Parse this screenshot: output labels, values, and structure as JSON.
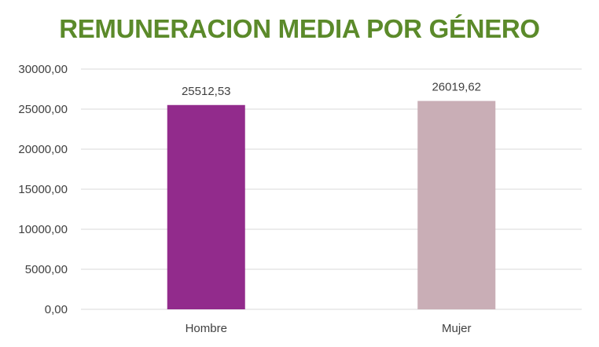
{
  "chart_data": {
    "type": "bar",
    "title": "REMUNERACION MEDIA POR GÉNERO",
    "categories": [
      "Hombre",
      "Mujer"
    ],
    "values": [
      25512.53,
      26019.62
    ],
    "data_labels": [
      "25512,53",
      "26019,62"
    ],
    "bar_colors": [
      "#922B8C",
      "#C9AEB6"
    ],
    "title_color": "#5B8A2A",
    "ylim": [
      0,
      30000
    ],
    "yticks": [
      0,
      5000,
      10000,
      15000,
      20000,
      25000,
      30000
    ],
    "ytick_labels": [
      "0,00",
      "5000,00",
      "10000,00",
      "15000,00",
      "20000,00",
      "25000,00",
      "30000,00"
    ],
    "grid": true,
    "legend": "none",
    "xlabel": "",
    "ylabel": ""
  }
}
